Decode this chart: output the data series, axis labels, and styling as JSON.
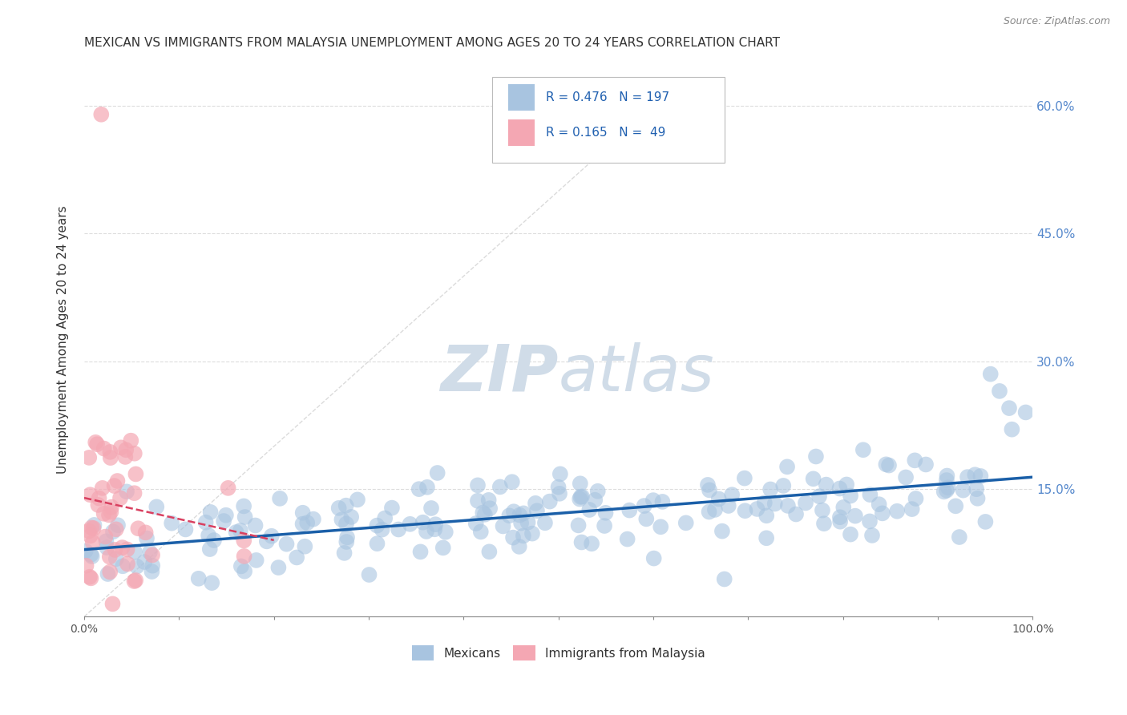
{
  "title": "MEXICAN VS IMMIGRANTS FROM MALAYSIA UNEMPLOYMENT AMONG AGES 20 TO 24 YEARS CORRELATION CHART",
  "source": "Source: ZipAtlas.com",
  "ylabel": "Unemployment Among Ages 20 to 24 years",
  "xlim": [
    0.0,
    1.0
  ],
  "ylim": [
    0.0,
    0.65
  ],
  "xticks": [
    0.0,
    0.1,
    0.2,
    0.3,
    0.4,
    0.5,
    0.6,
    0.7,
    0.8,
    0.9,
    1.0
  ],
  "xticklabels": [
    "0.0%",
    "",
    "",
    "",
    "",
    "",
    "",
    "",
    "",
    "",
    "100.0%"
  ],
  "yticks": [
    0.0,
    0.15,
    0.3,
    0.45,
    0.6
  ],
  "yticklabels": [
    "",
    "15.0%",
    "30.0%",
    "45.0%",
    "60.0%"
  ],
  "mexican_color": "#a8c4e0",
  "malaysia_color": "#f4a7b3",
  "mexican_R": 0.476,
  "mexican_N": 197,
  "malaysia_R": 0.165,
  "malaysia_N": 49,
  "trend_mexican_color": "#1a5fa8",
  "trend_malaysia_color": "#d94060",
  "diagonal_color": "#cccccc",
  "watermark_zip": "ZIP",
  "watermark_atlas": "atlas",
  "watermark_color": "#d0dce8",
  "title_fontsize": 11,
  "source_fontsize": 9,
  "legend_box_color_mexican": "#a8c4e0",
  "legend_box_color_malaysia": "#f4a7b3",
  "legend_text_color": "#2060b0",
  "background_color": "#ffffff",
  "grid_color": "#dddddd"
}
